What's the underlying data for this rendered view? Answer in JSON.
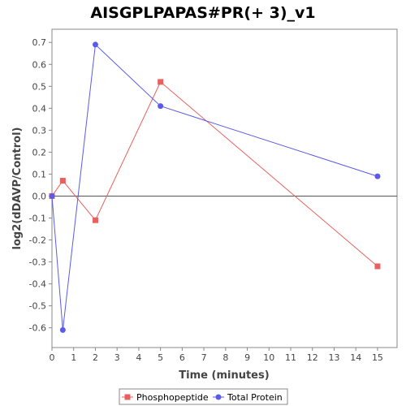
{
  "chart_data": {
    "type": "line",
    "title": "AISGPLPAPAS#PR(+ 3)_v1",
    "xlabel": "Time (minutes)",
    "ylabel": "log2(dDAVP/Control)",
    "xlim": [
      0,
      15.9
    ],
    "ylim": [
      -0.69,
      0.76
    ],
    "x_ticks": [
      0,
      1,
      2,
      3,
      4,
      5,
      6,
      7,
      8,
      9,
      10,
      11,
      12,
      13,
      14,
      15
    ],
    "y_ticks": [
      -0.6,
      -0.5,
      -0.4,
      -0.3,
      -0.2,
      -0.1,
      0.0,
      0.1,
      0.2,
      0.3,
      0.4,
      0.5,
      0.6,
      0.7
    ],
    "y_tick_labels": [
      "-0.6",
      "-0.5",
      "-0.4",
      "-0.3",
      "-0.2",
      "-0.1",
      "0.0",
      "0.1",
      "0.2",
      "0.3",
      "0.4",
      "0.5",
      "0.6",
      "0.7"
    ],
    "zero_line": true,
    "grid": false,
    "legend_position": "bottom",
    "series": [
      {
        "name": "Phosphopeptide",
        "color": "#e8605f",
        "marker": "square",
        "x": [
          0,
          0.5,
          2,
          5,
          15
        ],
        "y": [
          0.0,
          0.07,
          -0.11,
          0.52,
          -0.32
        ]
      },
      {
        "name": "Total Protein",
        "color": "#5b5be8",
        "marker": "circle",
        "x": [
          0,
          0.5,
          2,
          5,
          15
        ],
        "y": [
          0.0,
          -0.61,
          0.69,
          0.41,
          0.09
        ]
      }
    ]
  }
}
